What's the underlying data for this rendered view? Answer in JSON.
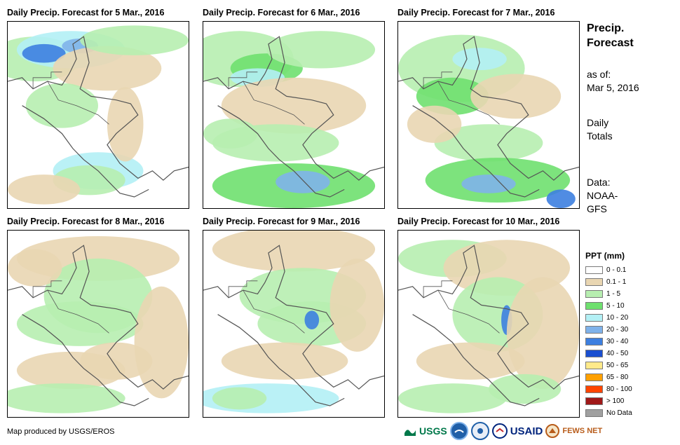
{
  "panels": [
    {
      "title": "Daily Precip. Forecast for 5 Mar., 2016",
      "day": "5 Mar., 2016"
    },
    {
      "title": "Daily Precip. Forecast for 6 Mar., 2016",
      "day": "6 Mar., 2016"
    },
    {
      "title": "Daily Precip. Forecast for 7 Mar., 2016",
      "day": "7 Mar., 2016"
    },
    {
      "title": "Daily Precip. Forecast for 8 Mar., 2016",
      "day": "8 Mar., 2016"
    },
    {
      "title": "Daily Precip. Forecast for 9 Mar., 2016",
      "day": "9 Mar., 2016"
    },
    {
      "title": "Daily Precip. Forecast for 10 Mar., 2016",
      "day": "10 Mar., 2016"
    }
  ],
  "sidebar": {
    "heading_line1": "Precip.",
    "heading_line2": "Forecast",
    "asof_label": "as of:",
    "asof_date": "Mar 5, 2016",
    "totals_line1": "Daily",
    "totals_line2": "Totals",
    "data_label": "Data:",
    "data_line1": "NOAA-",
    "data_line2": "GFS"
  },
  "legend": {
    "title": "PPT (mm)",
    "items": [
      {
        "label": "0 - 0.1",
        "color": "#ffffff"
      },
      {
        "label": "0.1 - 1",
        "color": "#e9d6b2"
      },
      {
        "label": "1 - 5",
        "color": "#b7eeb0"
      },
      {
        "label": "5 - 10",
        "color": "#6fe06f"
      },
      {
        "label": "10 - 20",
        "color": "#b3f0f5"
      },
      {
        "label": "20 - 30",
        "color": "#7fb2ea"
      },
      {
        "label": "30 - 40",
        "color": "#3d7fe0"
      },
      {
        "label": "40 - 50",
        "color": "#1a4fd0"
      },
      {
        "label": "50 - 65",
        "color": "#ffea8a"
      },
      {
        "label": "65 - 80",
        "color": "#ffa000"
      },
      {
        "label": "80 - 100",
        "color": "#ff4500"
      },
      {
        "label": "> 100",
        "color": "#a01818"
      },
      {
        "label": "No Data",
        "color": "#a0a0a0"
      }
    ]
  },
  "credit": "Map produced by USGS/EROS",
  "logos": {
    "usgs": "USGS",
    "usaid": "USAID",
    "fewsnet": "FEWS NET"
  },
  "colors": {
    "coastline": "#555555"
  }
}
